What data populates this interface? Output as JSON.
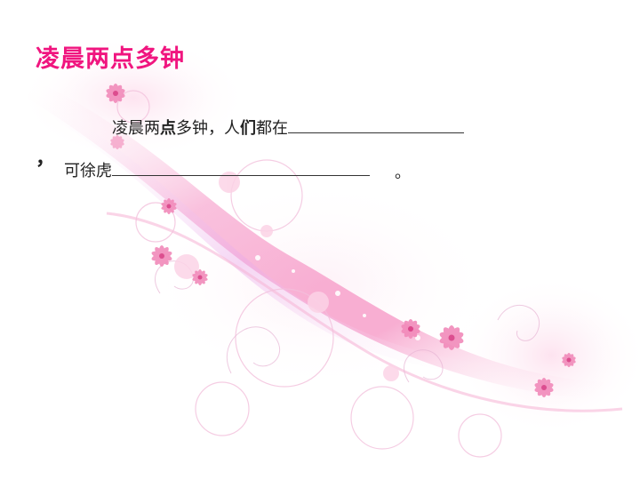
{
  "title": "凌晨两点多钟",
  "sentence1": {
    "part_a": "凌晨两",
    "bold_a": "点",
    "part_b": "多钟，人",
    "bold_b": "们",
    "part_c": "都在"
  },
  "comma": "，",
  "sentence2": {
    "text": "可徐虎",
    "end": "。"
  },
  "colors": {
    "title": "#f0157f",
    "accent_pink": "#f48cc0",
    "accent_light": "#fbd3e6"
  }
}
